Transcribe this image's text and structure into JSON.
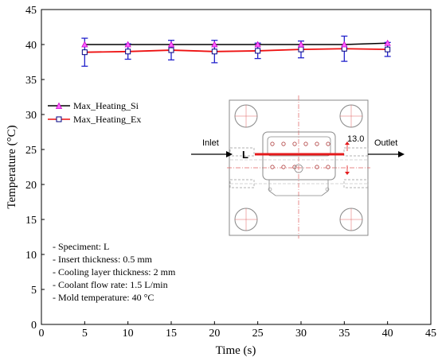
{
  "chart_data": {
    "type": "line",
    "title": "",
    "xlabel": "Time (s)",
    "ylabel": "Temperature (°C)",
    "xlim": [
      0,
      45
    ],
    "ylim": [
      0,
      45
    ],
    "xticks": [
      0,
      5,
      10,
      15,
      20,
      25,
      30,
      35,
      40,
      45
    ],
    "yticks": [
      0,
      5,
      10,
      15,
      20,
      25,
      30,
      35,
      40,
      45
    ],
    "grid": false,
    "legend_position": "center-left",
    "x": [
      5,
      10,
      15,
      20,
      25,
      30,
      35,
      40
    ],
    "series": [
      {
        "name": "Max_Heating_Si",
        "color": "#000000",
        "marker": "triangle",
        "marker_color": "#ff00ff",
        "values": [
          40.0,
          40.0,
          40.0,
          40.0,
          40.0,
          40.0,
          40.0,
          40.2
        ]
      },
      {
        "name": "Max_Heating_Ex",
        "color": "#ee1111",
        "marker": "square",
        "marker_color": "#000080",
        "values": [
          38.9,
          39.0,
          39.2,
          39.0,
          39.1,
          39.3,
          39.4,
          39.3
        ],
        "error": [
          2.0,
          1.1,
          1.4,
          1.6,
          1.1,
          1.2,
          1.8,
          1.0
        ],
        "error_color": "#2222cc"
      }
    ],
    "annotations": [
      "- Speciment: L",
      "- Insert thickness: 0.5 mm",
      "- Cooling layer thickness: 2  mm",
      "- Coolant flow rate: 1.5 L/min",
      "- Mold temperature: 40 °C"
    ],
    "inset": {
      "inlet_label": "Inlet",
      "outlet_label": "Outlet",
      "length_label": "L",
      "dimension_label": "13.0"
    }
  }
}
